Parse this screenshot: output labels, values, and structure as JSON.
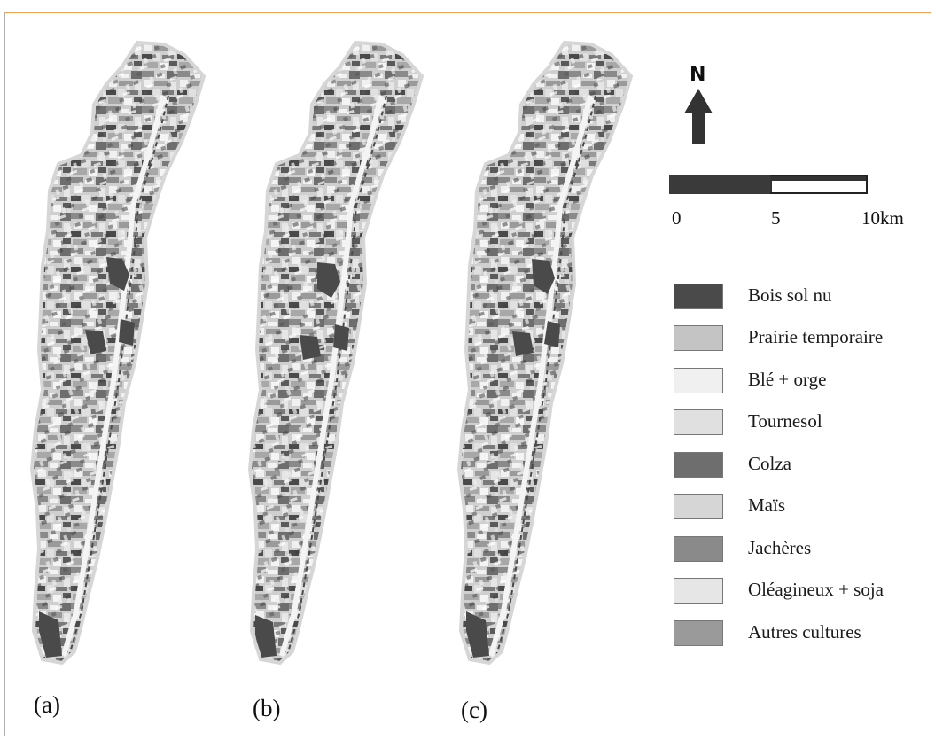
{
  "panels": [
    {
      "label": "(a)"
    },
    {
      "label": "(b)"
    },
    {
      "label": "(c)"
    }
  ],
  "north_arrow": {
    "label": "N",
    "icon": "north-arrow-icon"
  },
  "scale_bar": {
    "ticks": [
      "0",
      "5",
      "10km"
    ]
  },
  "legend": {
    "items": [
      {
        "label": "Bois sol nu",
        "color": "#4a4a4a"
      },
      {
        "label": "Prairie temporaire",
        "color": "#c4c4c4"
      },
      {
        "label": "Blé + orge",
        "color": "#f0f0f0"
      },
      {
        "label": "Tournesol",
        "color": "#e0e0e0"
      },
      {
        "label": "Colza",
        "color": "#6e6e6e"
      },
      {
        "label": "Maïs",
        "color": "#d6d6d6"
      },
      {
        "label": "Jachères",
        "color": "#8a8a8a"
      },
      {
        "label": "Oléagineux + soja",
        "color": "#e6e6e6"
      },
      {
        "label": "Autres cultures",
        "color": "#9a9a9a"
      }
    ]
  }
}
